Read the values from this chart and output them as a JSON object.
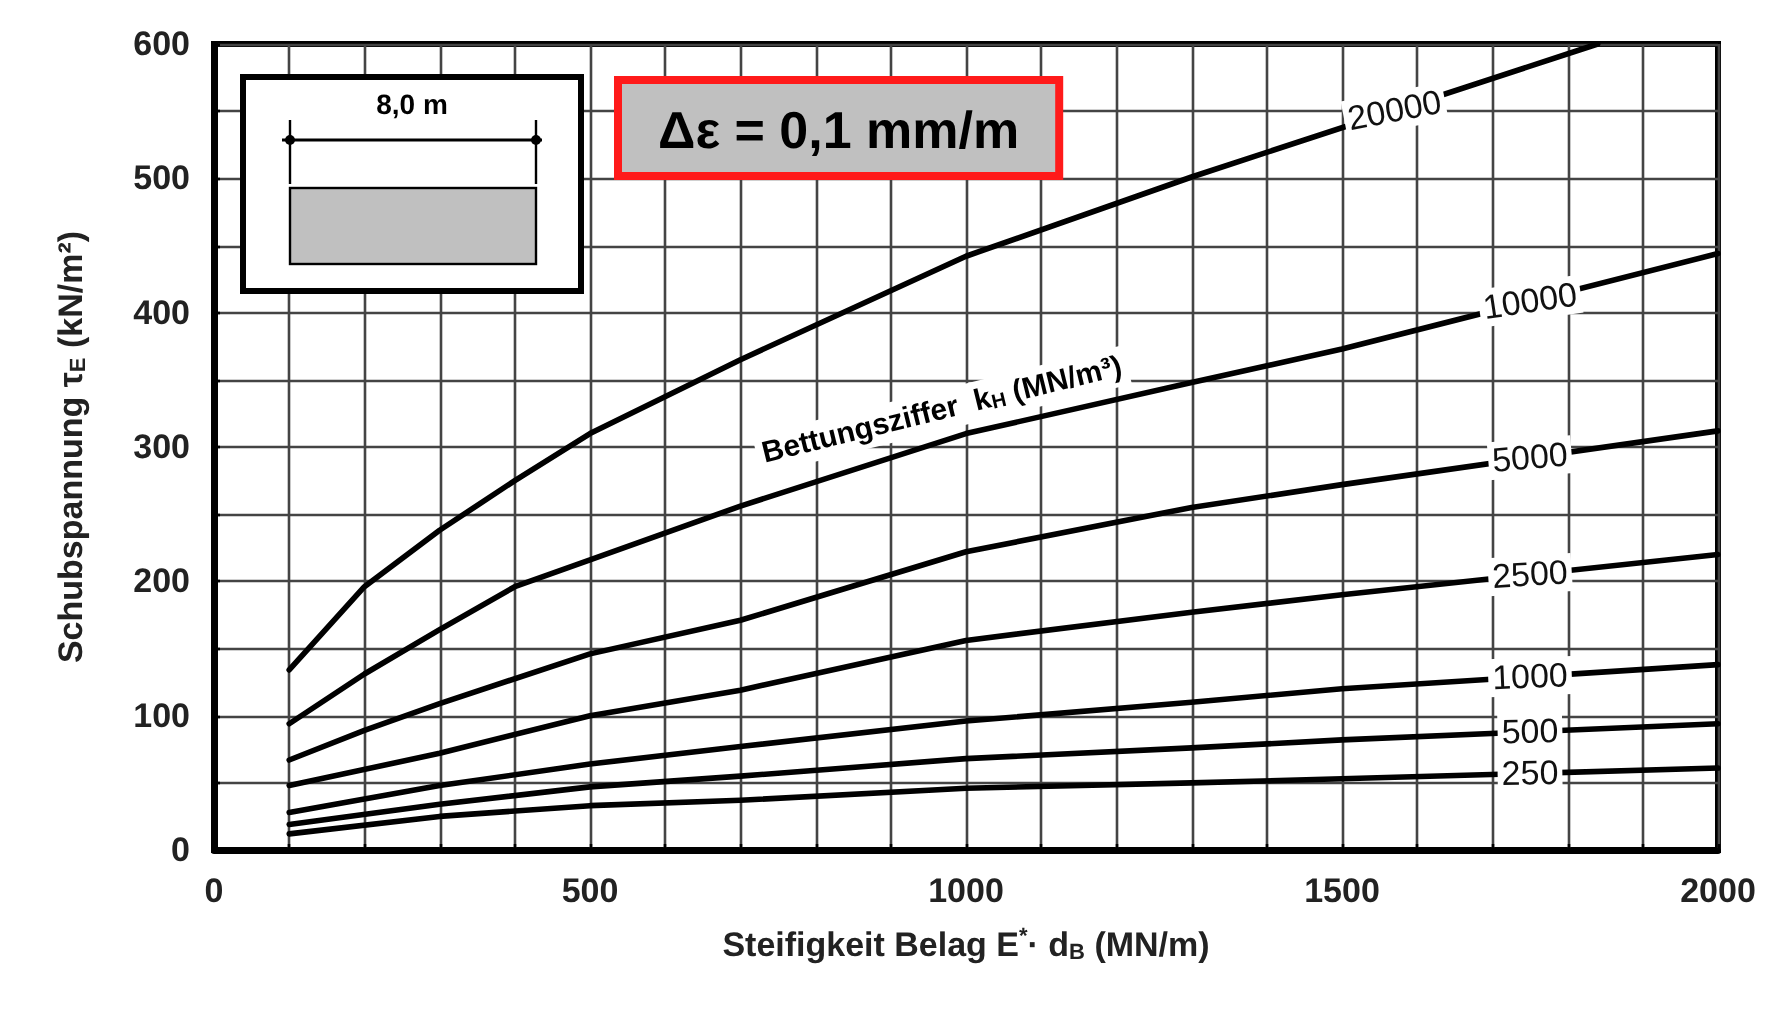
{
  "chart_data": {
    "type": "line",
    "xlabel": "Steifigkeit Belag E$^{*}$· d$_{B}$ (MN/m)",
    "ylabel": "Schubspannung τ$_{E}$ (kN/m²)",
    "annotations": [
      "Δε = 0,1 mm/m",
      "Bettungsziffer  k$_{H}$ (MN/m³)",
      "8,0 m"
    ],
    "xlim": [
      0,
      2000
    ],
    "ylim": [
      0,
      600
    ],
    "xticks": [
      0,
      {
        "value": 100,
        "label": null
      },
      {
        "value": 200,
        "label": null
      },
      {
        "value": 300,
        "label": null
      },
      {
        "value": 400,
        "label": null
      },
      500,
      {
        "value": 600,
        "label": null
      },
      {
        "value": 700,
        "label": null
      },
      {
        "value": 800,
        "label": null
      },
      {
        "value": 900,
        "label": null
      },
      1000,
      {
        "value": 1100,
        "label": null
      },
      {
        "value": 1200,
        "label": null
      },
      {
        "value": 1300,
        "label": null
      },
      {
        "value": 1400,
        "label": null
      },
      1500,
      {
        "value": 1600,
        "label": null
      },
      {
        "value": 1700,
        "label": null
      },
      {
        "value": 1800,
        "label": null
      },
      {
        "value": 1900,
        "label": null
      },
      2000
    ],
    "yticks": [
      0,
      {
        "value": 50,
        "label": null
      },
      100,
      {
        "value": 150,
        "label": null
      },
      200,
      {
        "value": 250,
        "label": null
      },
      300,
      {
        "value": 350,
        "label": null
      },
      400,
      {
        "value": 450,
        "label": null
      },
      500,
      {
        "value": 550,
        "label": null
      },
      600
    ],
    "grid": true,
    "legend": false,
    "marker": "none",
    "line_style": "solid",
    "series": [
      {
        "name": "20000",
        "color": "#000000",
        "x": [
          100,
          200,
          300,
          400,
          500,
          700,
          1000,
          1300,
          1840
        ],
        "values": [
          134,
          196,
          238,
          275,
          310,
          365,
          442,
          501,
          600
        ]
      },
      {
        "name": "10000",
        "color": "#000000",
        "x": [
          100,
          200,
          300,
          400,
          500,
          700,
          1000,
          1300,
          1500,
          2000
        ],
        "values": [
          94,
          131,
          164,
          196,
          216,
          256,
          310,
          348,
          373,
          444
        ]
      },
      {
        "name": "5000",
        "color": "#000000",
        "x": [
          100,
          200,
          300,
          500,
          700,
          1000,
          1300,
          1500,
          2000
        ],
        "values": [
          67,
          89,
          109,
          146,
          171,
          222,
          255,
          272,
          312
        ]
      },
      {
        "name": "2500",
        "color": "#000000",
        "x": [
          100,
          300,
          500,
          700,
          1000,
          1300,
          1500,
          2000
        ],
        "values": [
          48,
          72,
          100,
          119,
          156,
          177,
          190,
          220
        ]
      },
      {
        "name": "1000",
        "color": "#000000",
        "x": [
          100,
          300,
          500,
          700,
          1000,
          1300,
          1500,
          2000
        ],
        "values": [
          28,
          48,
          64,
          77,
          96,
          110,
          120,
          138
        ]
      },
      {
        "name": "500",
        "color": "#000000",
        "x": [
          100,
          300,
          500,
          700,
          1000,
          1300,
          1500,
          2000
        ],
        "values": [
          19,
          34,
          47,
          55,
          68,
          76,
          82,
          94
        ]
      },
      {
        "name": "250",
        "color": "#000000",
        "x": [
          100,
          300,
          500,
          700,
          1000,
          1300,
          1500,
          2000
        ],
        "values": [
          12,
          25,
          33,
          37,
          46,
          50,
          53,
          61
        ]
      }
    ]
  }
}
